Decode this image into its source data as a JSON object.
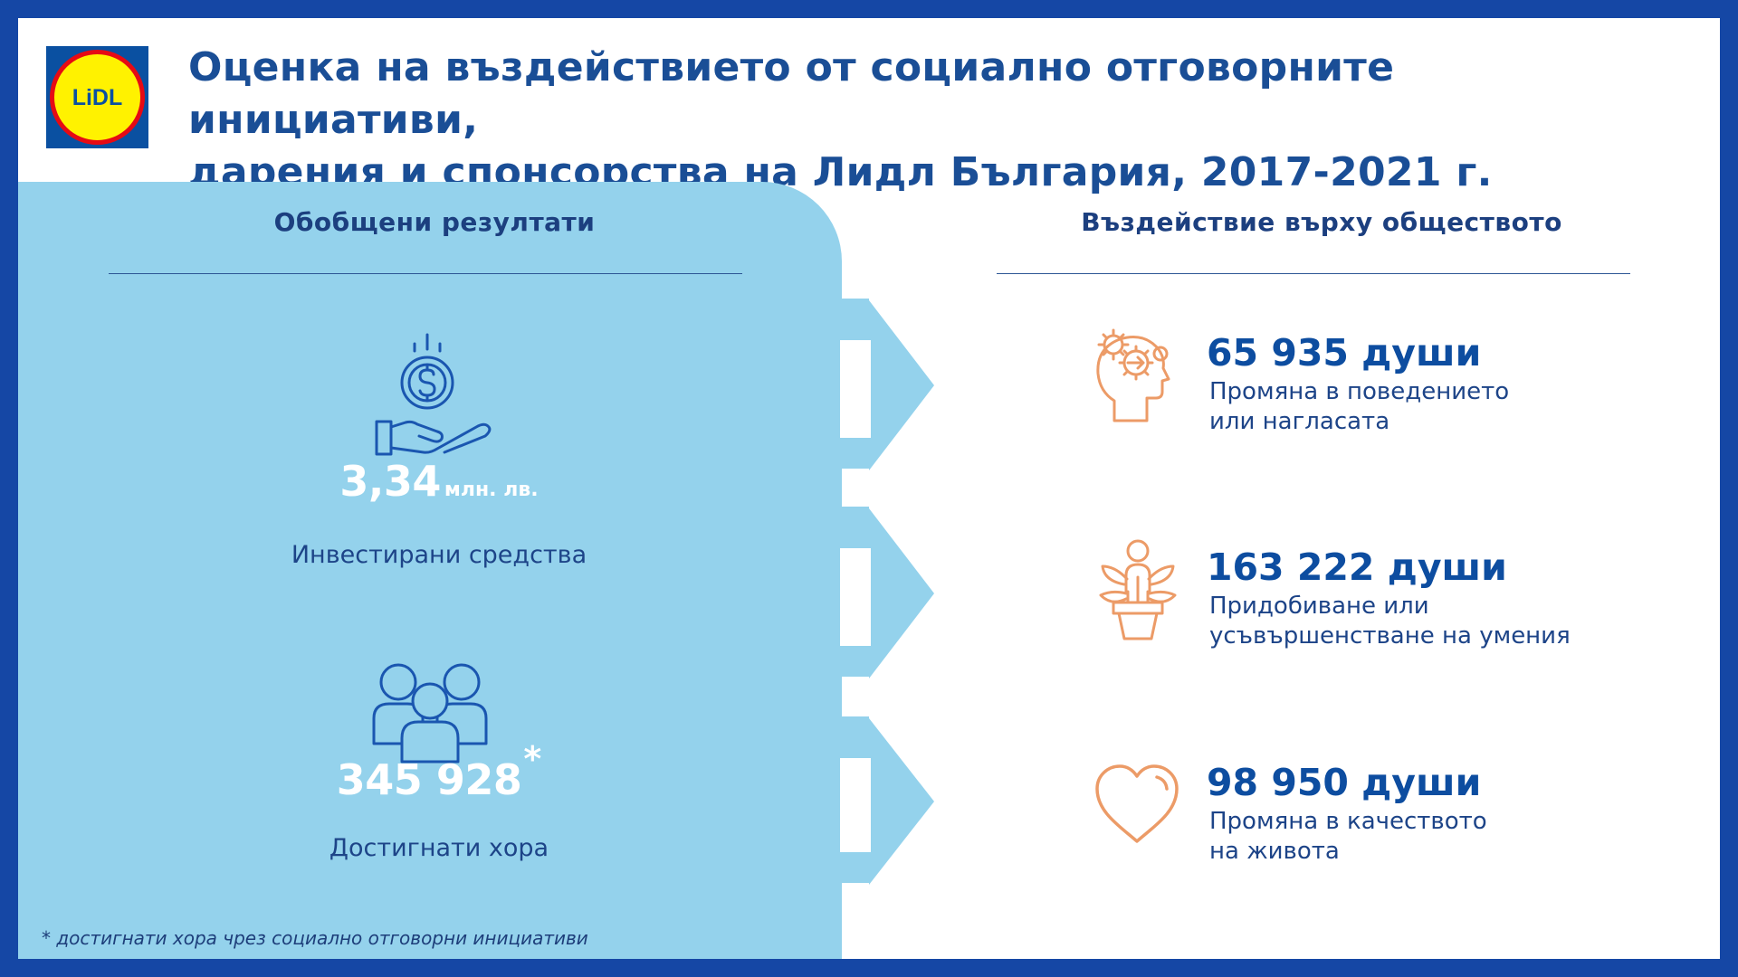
{
  "header": {
    "logo_text": "LiDL",
    "title_line1": "Оценка на въздействието от социално отговорните инициативи,",
    "title_line2": "дарения и спонсорства на Лидл България, 2017-2021 г."
  },
  "summary": {
    "heading": "Обобщени резултати",
    "investment": {
      "icon": "money-hand-icon",
      "value": "3,34",
      "unit": "млн. лв.",
      "label": "Инвестирани средства"
    },
    "people": {
      "icon": "people-group-icon",
      "value": "345 928",
      "marker": "*",
      "label": "Достигнати хора"
    },
    "footnote": "* достигнати хора чрез социално отговорни инициативи"
  },
  "impact": {
    "heading": "Въздействие върху обществото",
    "items": [
      {
        "icon": "head-gears-icon",
        "value": "65 935 души",
        "line1": "Промяна в поведението",
        "line2": "или нагласата"
      },
      {
        "icon": "person-plant-icon",
        "value": "163 222 души",
        "line1": "Придобиване или",
        "line2": "усъвършенстване на умения"
      },
      {
        "icon": "heart-icon",
        "value": "98 950 души",
        "line1": "Промяна в качеството",
        "line2": "на живота"
      }
    ]
  },
  "colors": {
    "frame": "#1547a5",
    "panel": "#94d2ec",
    "title": "#1a4e96",
    "impact_icon": "#ec9b67",
    "summary_icon": "#1a56b0"
  }
}
